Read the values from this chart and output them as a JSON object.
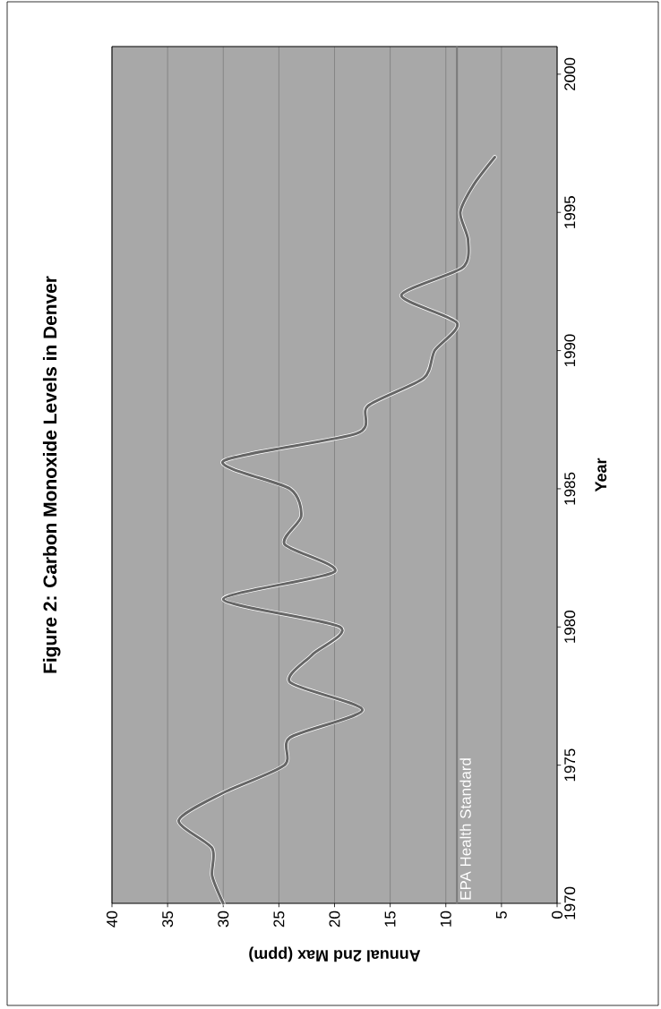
{
  "chart_data": {
    "type": "line",
    "title": "Figure 2: Carbon Monoxide Levels in Denver",
    "xlabel": "Annual 2nd Max (ppm)",
    "ylabel": "Year",
    "series": [
      {
        "color": "#666666",
        "x": [
          30,
          31,
          31,
          34,
          30,
          24.5,
          24,
          17.5,
          24,
          22,
          19.5,
          30,
          20,
          24.5,
          23,
          24,
          30,
          18,
          17,
          12,
          11,
          9,
          14,
          8.5,
          8,
          8.7,
          7.5,
          5.6
        ],
        "values": [
          1970,
          1971,
          1972,
          1973,
          1974,
          1975,
          1976,
          1977,
          1978,
          1979,
          1980,
          1981,
          1982,
          1983,
          1984,
          1985,
          1986,
          1987,
          1988,
          1989,
          1990,
          1991,
          1992,
          1993,
          1994,
          1995,
          1996,
          1997
        ]
      }
    ],
    "xlim": [
      40,
      0
    ],
    "xticks": [
      40,
      35,
      30,
      25,
      20,
      15,
      10,
      5,
      0
    ],
    "ylim": [
      1970,
      2001
    ],
    "yticks": [
      1970,
      1975,
      1980,
      1985,
      1990,
      1995,
      2000
    ],
    "grid": "x",
    "ref_lines": [
      {
        "axis": "x",
        "value": 9,
        "label": "EPA Health Standard",
        "color": "#7a7a7a"
      }
    ]
  }
}
